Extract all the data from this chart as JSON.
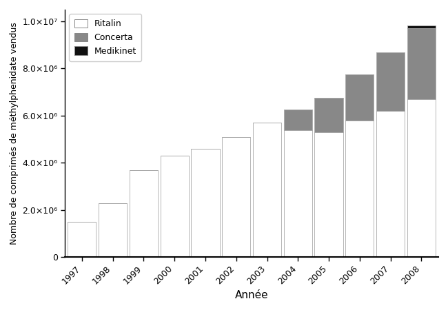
{
  "years": [
    1997,
    1998,
    1999,
    2000,
    2001,
    2002,
    2003,
    2004,
    2005,
    2006,
    2007,
    2008
  ],
  "ritalin": [
    1500000,
    2300000,
    3700000,
    4300000,
    4600000,
    5100000,
    5700000,
    5400000,
    5300000,
    5800000,
    6200000,
    6700000
  ],
  "concerta": [
    0,
    0,
    0,
    0,
    0,
    0,
    0,
    850000,
    1450000,
    1950000,
    2500000,
    3000000
  ],
  "medikinet": [
    0,
    0,
    0,
    0,
    0,
    0,
    0,
    0,
    0,
    0,
    0,
    130000
  ],
  "ritalin_color": "#ffffff",
  "concerta_color": "#888888",
  "medikinet_color": "#111111",
  "bar_edge_color": "#aaaaaa",
  "xlabel": "Année",
  "ylabel": "Nombre de comprimés de méthylphenidate vendus",
  "ylim": [
    0,
    10500000.0
  ],
  "yticks": [
    0,
    2000000,
    4000000,
    6000000,
    8000000,
    10000000
  ],
  "ytick_labels": [
    "0",
    "2.0×10⁶",
    "4.0×10⁶",
    "6.0×10⁶",
    "8.0×10⁶",
    "1.0×10⁷"
  ],
  "legend_labels": [
    "Ritalin",
    "Concerta",
    "Medikinet"
  ],
  "bar_width": 0.92
}
